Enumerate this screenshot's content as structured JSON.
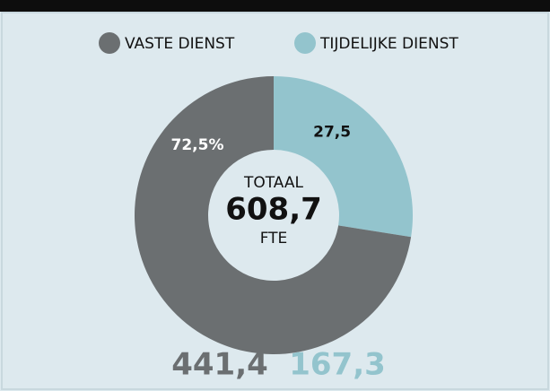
{
  "chart_data": {
    "type": "pie",
    "donut": true,
    "categories": [
      "VASTE DIENST",
      "TIJDELIJKE DIENST"
    ],
    "values": [
      72.5,
      27.5
    ],
    "value_labels": [
      "72,5%",
      "27,5"
    ],
    "colors": [
      "#6b6f71",
      "#93c4cd"
    ],
    "center": {
      "label": "TOTAAL",
      "total": "608,7",
      "unit": "FTE"
    },
    "footer_values": [
      "441,4",
      "167,3"
    ]
  }
}
